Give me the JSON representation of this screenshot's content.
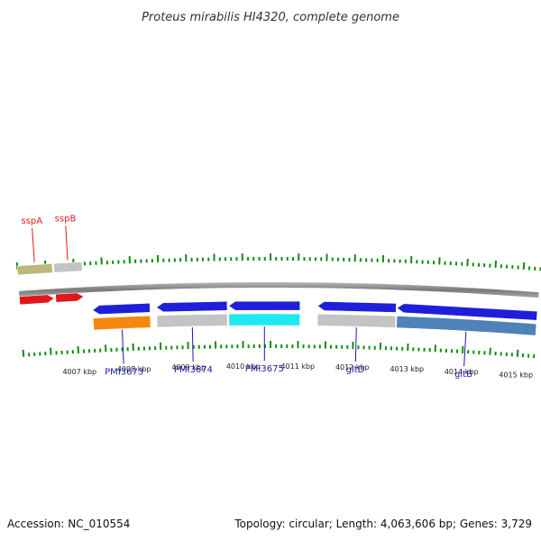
{
  "header": {
    "title": "Proteus mirabilis HI4320, complete genome"
  },
  "footer": {
    "accession": "Accession: NC_010554",
    "topology": "Topology: circular; Length: 4,063,606 bp; Genes: 3,729"
  },
  "colors": {
    "top_label": "#e0171b",
    "bottom_label": "#1a1aa8",
    "tick": "#138b13",
    "backbone": "#8a8a8a"
  },
  "scale": {
    "labels": [
      {
        "text": "4007 kbp",
        "kbp": 4007
      },
      {
        "text": "4008 kbp",
        "kbp": 4008
      },
      {
        "text": "4009 kbp",
        "kbp": 4009
      },
      {
        "text": "4010 kbp",
        "kbp": 4010
      },
      {
        "text": "4011 kbp",
        "kbp": 4011
      },
      {
        "text": "4012 kbp",
        "kbp": 4012
      },
      {
        "text": "4013 kbp",
        "kbp": 4013
      },
      {
        "text": "4014 kbp",
        "kbp": 4014
      },
      {
        "text": "4015 kbp",
        "kbp": 4015
      }
    ]
  },
  "genes": [
    {
      "name": "sspA",
      "label_side": "top",
      "color": "#e0171b",
      "cog_color": "#bdb779",
      "strand": "+",
      "start_kbp": 4006.0,
      "end_kbp": 4006.62
    },
    {
      "name": "sspB",
      "label_side": "top",
      "color": "#e0171b",
      "cog_color": "#c4c4c4",
      "strand": "+",
      "start_kbp": 4006.65,
      "end_kbp": 4007.15
    },
    {
      "name": "PMI3673",
      "label_side": "bottom",
      "color": "#1f1fd9",
      "cog_color": "#f5880f",
      "strand": "-",
      "start_kbp": 4007.3,
      "end_kbp": 4008.33
    },
    {
      "name": "PMI3674",
      "label_side": "bottom",
      "color": "#1f1fd9",
      "cog_color": "#c4c4c4",
      "strand": "-",
      "start_kbp": 4008.45,
      "end_kbp": 4009.72
    },
    {
      "name": "PMI3675",
      "label_side": "bottom",
      "color": "#1f1fd9",
      "cog_color": "#1fe8ef",
      "strand": "-",
      "start_kbp": 4009.75,
      "end_kbp": 4011.03
    },
    {
      "name": "gltD",
      "label_side": "bottom",
      "color": "#1f1fd9",
      "cog_color": "#c4c4c4",
      "strand": "-",
      "start_kbp": 4011.35,
      "end_kbp": 4012.76
    },
    {
      "name": "gltB",
      "label_side": "bottom",
      "color": "#1f1fd9",
      "cog_color": "#4f82b8",
      "strand": "-",
      "start_kbp": 4012.78,
      "end_kbp": 4015.3
    }
  ]
}
